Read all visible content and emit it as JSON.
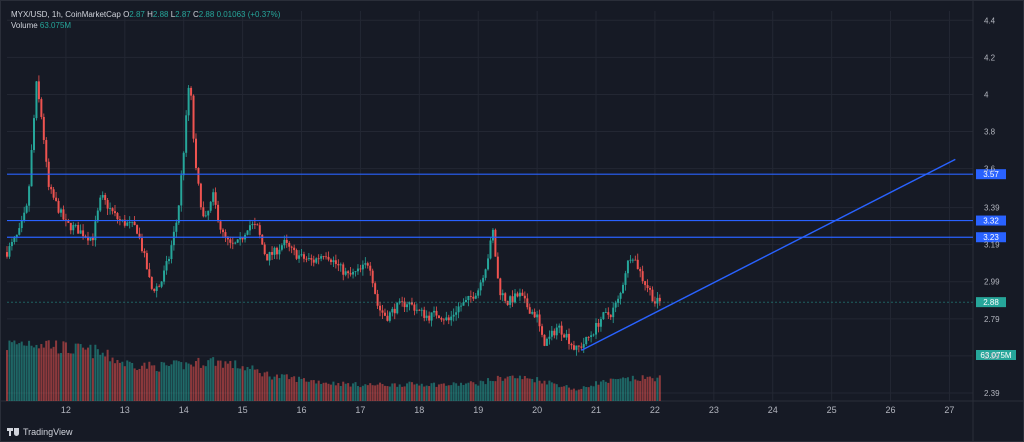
{
  "legend": {
    "symbol": "MYX/USD, 1h, CoinMarketCap",
    "o_label": "O",
    "o": "2.87",
    "h_label": "H",
    "h": "2.88",
    "l_label": "L",
    "l": "2.87",
    "c_label": "C",
    "c": "2.88",
    "change": "0.01063 (+0.37%)",
    "volume_label": "Volume",
    "volume": "63.075M"
  },
  "brand": "TradingView",
  "colors": {
    "bg": "#161a25",
    "up": "#26a69a",
    "down": "#ef5350",
    "line": "#2962ff",
    "grid": "#232733",
    "text": "#b2b5be"
  },
  "chart_data": {
    "type": "candlestick",
    "x_ticks": [
      "12",
      "13",
      "14",
      "15",
      "16",
      "17",
      "18",
      "19",
      "20",
      "21",
      "22",
      "23",
      "24",
      "25",
      "26",
      "27"
    ],
    "y_ticks": [
      "4.4",
      "4.2",
      "4",
      "3.8",
      "3.6",
      "3.39",
      "3.19",
      "2.99",
      "2.79",
      "2.59",
      "2.39"
    ],
    "ylim": [
      2.39,
      4.45
    ],
    "horizontal_levels": [
      "3.57",
      "3.32",
      "3.23"
    ],
    "current_price": "2.88",
    "volume_label": "63.075M",
    "price_path": [
      [
        11.0,
        3.15
      ],
      [
        11.2,
        3.25
      ],
      [
        11.35,
        3.4
      ],
      [
        11.5,
        4.05
      ],
      [
        11.6,
        3.85
      ],
      [
        11.7,
        3.5
      ],
      [
        11.85,
        3.4
      ],
      [
        12.0,
        3.3
      ],
      [
        12.15,
        3.28
      ],
      [
        12.3,
        3.25
      ],
      [
        12.45,
        3.22
      ],
      [
        12.6,
        3.45
      ],
      [
        12.75,
        3.38
      ],
      [
        12.9,
        3.32
      ],
      [
        13.05,
        3.3
      ],
      [
        13.2,
        3.28
      ],
      [
        13.35,
        3.1
      ],
      [
        13.45,
        2.95
      ],
      [
        13.6,
        2.97
      ],
      [
        13.75,
        3.12
      ],
      [
        13.9,
        3.35
      ],
      [
        14.0,
        3.7
      ],
      [
        14.1,
        4.1
      ],
      [
        14.2,
        3.6
      ],
      [
        14.35,
        3.3
      ],
      [
        14.5,
        3.45
      ],
      [
        14.65,
        3.25
      ],
      [
        14.8,
        3.18
      ],
      [
        14.95,
        3.2
      ],
      [
        15.1,
        3.3
      ],
      [
        15.25,
        3.28
      ],
      [
        15.4,
        3.12
      ],
      [
        15.55,
        3.15
      ],
      [
        15.7,
        3.2
      ],
      [
        15.85,
        3.15
      ],
      [
        16.0,
        3.12
      ],
      [
        16.2,
        3.1
      ],
      [
        16.4,
        3.15
      ],
      [
        16.6,
        3.08
      ],
      [
        16.8,
        3.02
      ],
      [
        17.0,
        3.05
      ],
      [
        17.15,
        3.1
      ],
      [
        17.3,
        2.85
      ],
      [
        17.45,
        2.8
      ],
      [
        17.6,
        2.85
      ],
      [
        17.8,
        2.88
      ],
      [
        18.0,
        2.83
      ],
      [
        18.15,
        2.8
      ],
      [
        18.3,
        2.82
      ],
      [
        18.5,
        2.78
      ],
      [
        18.65,
        2.85
      ],
      [
        18.8,
        2.88
      ],
      [
        19.0,
        2.95
      ],
      [
        19.15,
        3.1
      ],
      [
        19.25,
        3.26
      ],
      [
        19.35,
        2.95
      ],
      [
        19.5,
        2.88
      ],
      [
        19.7,
        2.92
      ],
      [
        19.85,
        2.85
      ],
      [
        20.0,
        2.8
      ],
      [
        20.1,
        2.66
      ],
      [
        20.2,
        2.68
      ],
      [
        20.35,
        2.75
      ],
      [
        20.5,
        2.7
      ],
      [
        20.65,
        2.62
      ],
      [
        20.8,
        2.66
      ],
      [
        20.95,
        2.72
      ],
      [
        21.1,
        2.8
      ],
      [
        21.25,
        2.82
      ],
      [
        21.4,
        2.9
      ],
      [
        21.5,
        3.05
      ],
      [
        21.6,
        3.15
      ],
      [
        21.7,
        3.08
      ],
      [
        21.8,
        3.0
      ],
      [
        21.9,
        2.95
      ],
      [
        22.0,
        2.88
      ],
      [
        22.1,
        2.88
      ]
    ],
    "trendline": {
      "start": [
        20.75,
        2.62
      ],
      "end": [
        27.1,
        3.65
      ]
    },
    "volume_profile": [
      [
        11.0,
        0.62
      ],
      [
        11.4,
        0.66
      ],
      [
        11.7,
        0.64
      ],
      [
        12.0,
        0.58
      ],
      [
        12.5,
        0.55
      ],
      [
        13.0,
        0.42
      ],
      [
        13.5,
        0.38
      ],
      [
        14.0,
        0.4
      ],
      [
        14.5,
        0.45
      ],
      [
        15.0,
        0.38
      ],
      [
        15.5,
        0.28
      ],
      [
        16.0,
        0.24
      ],
      [
        16.5,
        0.2
      ],
      [
        17.0,
        0.18
      ],
      [
        17.5,
        0.18
      ],
      [
        18.0,
        0.19
      ],
      [
        18.5,
        0.18
      ],
      [
        19.0,
        0.2
      ],
      [
        19.5,
        0.27
      ],
      [
        20.0,
        0.24
      ],
      [
        20.5,
        0.16
      ],
      [
        20.7,
        0.12
      ],
      [
        21.0,
        0.2
      ],
      [
        21.5,
        0.24
      ],
      [
        22.1,
        0.26
      ]
    ]
  }
}
